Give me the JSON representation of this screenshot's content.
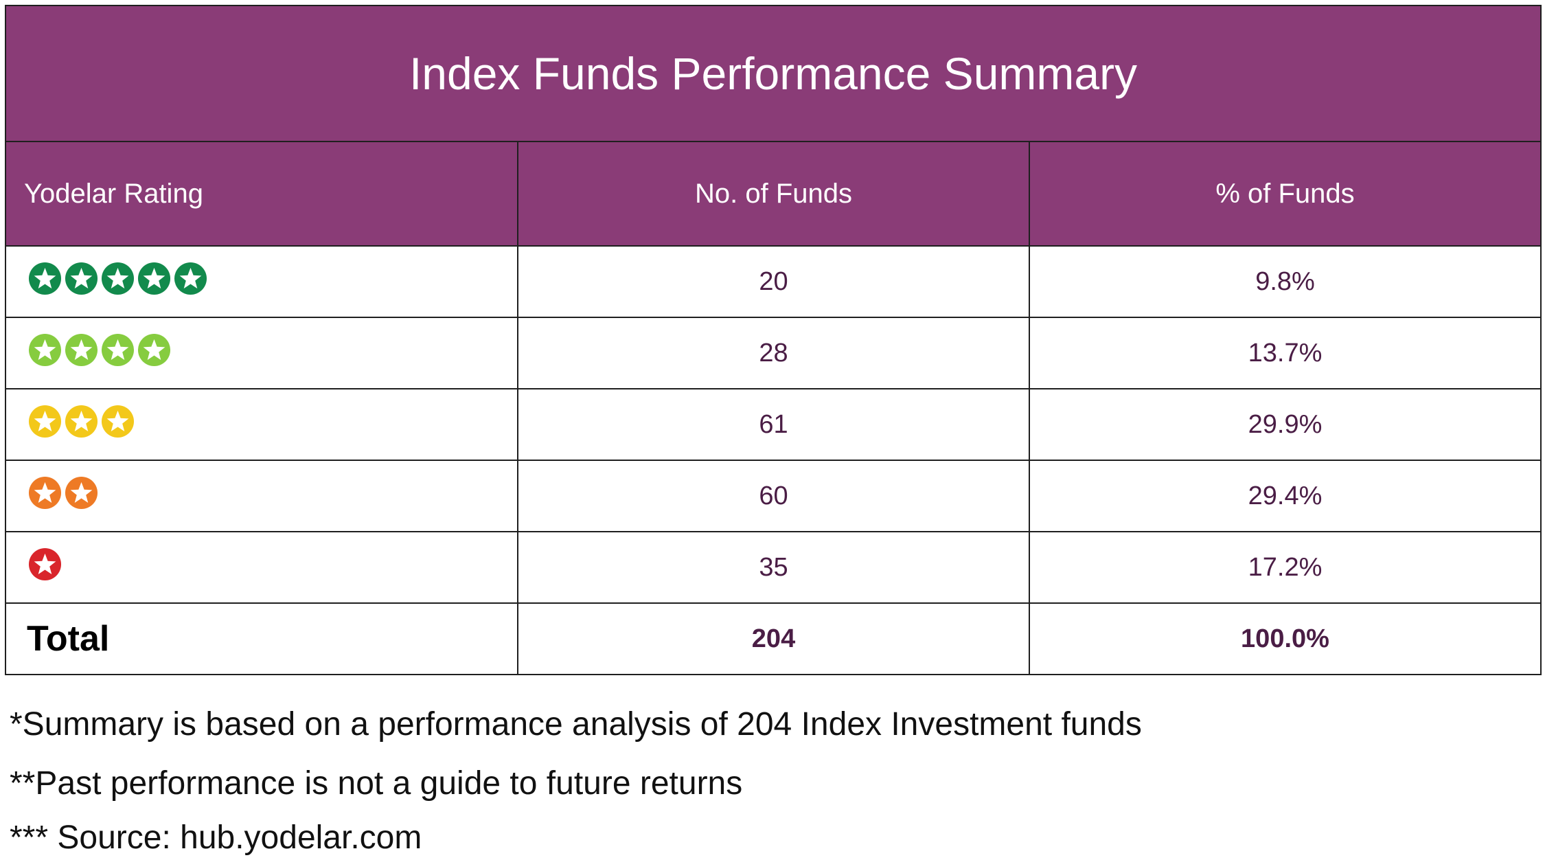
{
  "table": {
    "title": "Index Funds Performance Summary",
    "headers": [
      "Yodelar Rating",
      "No. of Funds",
      "% of Funds"
    ],
    "rows": [
      {
        "stars": 5,
        "color": "#128a4c",
        "funds": "20",
        "percent": "9.8%"
      },
      {
        "stars": 4,
        "color": "#86cc3f",
        "funds": "28",
        "percent": "13.7%"
      },
      {
        "stars": 3,
        "color": "#f3c81a",
        "funds": "61",
        "percent": "29.9%"
      },
      {
        "stars": 2,
        "color": "#ee7a25",
        "funds": "60",
        "percent": "29.4%"
      },
      {
        "stars": 1,
        "color": "#d9252b",
        "funds": "35",
        "percent": "17.2%"
      }
    ],
    "total": {
      "label": "Total",
      "funds": "204",
      "percent": "100.0%"
    }
  },
  "notes": [
    "*Summary is based on a performance analysis of 204 Index Investment funds",
    "**Past performance is not a guide to future returns",
    "*** Source: hub.yodelar.com"
  ],
  "colors": {
    "header_bg": "#8a3c77",
    "value_text": "#4a1d45"
  }
}
